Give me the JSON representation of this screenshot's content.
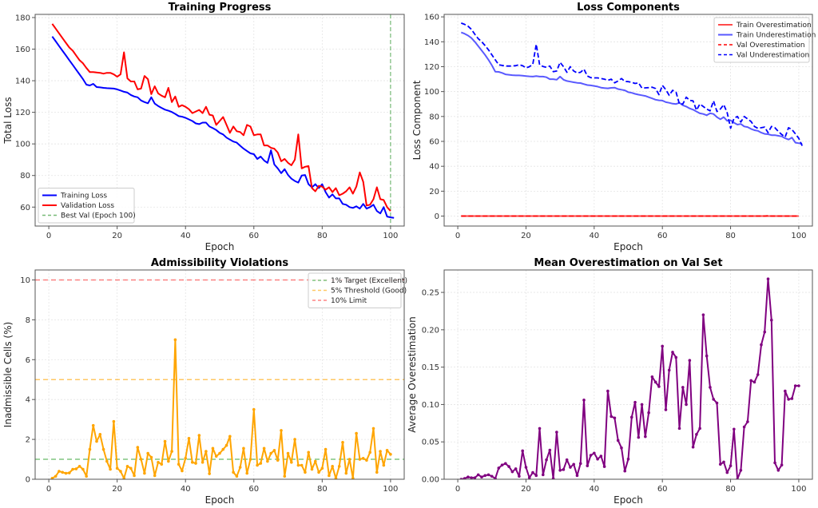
{
  "chart_data": [
    {
      "id": "training",
      "type": "line",
      "title": "Training Progress",
      "xlabel": "Epoch",
      "ylabel": "Total Loss",
      "xlim": [
        -4,
        104
      ],
      "ylim": [
        48,
        182
      ],
      "xticks": [
        0,
        20,
        40,
        60,
        80,
        100
      ],
      "yticks": [
        60,
        80,
        100,
        120,
        140,
        160,
        180
      ],
      "grid": true,
      "legend_position": "lower-left",
      "x_start": 1,
      "series": [
        {
          "name": "Training Loss",
          "color": "#0000ff",
          "style": "solid",
          "values": [
            168,
            165,
            162,
            159,
            156,
            153,
            150,
            147,
            144,
            141,
            137.5,
            137,
            138,
            136,
            135.8,
            135.5,
            135.3,
            135.2,
            135,
            134.5,
            133.8,
            133,
            132.5,
            131,
            130,
            129.5,
            127.5,
            126.5,
            125.7,
            129.5,
            125.5,
            124,
            122.8,
            121.7,
            121,
            120.2,
            119,
            117.6,
            117.2,
            116.5,
            115.5,
            114.5,
            113,
            112.5,
            113.5,
            113.5,
            111,
            110,
            108.8,
            107,
            106,
            104,
            102.7,
            101.5,
            100.8,
            98.8,
            97,
            95.5,
            94,
            93.5,
            90.5,
            92,
            89.5,
            88,
            96,
            87,
            84.5,
            81.5,
            84,
            80.3,
            78,
            76.5,
            75.5,
            80,
            80.3,
            74.5,
            72.5,
            74.5,
            72,
            74.5,
            69.5,
            66,
            68,
            65.5,
            65.5,
            62,
            61.5,
            60,
            59.5,
            60.5,
            59,
            62,
            59,
            60,
            61.5,
            57.5,
            56,
            60,
            54,
            53.5,
            53.2
          ]
        },
        {
          "name": "Validation Loss",
          "color": "#ff0000",
          "style": "solid",
          "values": [
            176,
            173,
            170,
            167,
            164,
            161,
            159,
            156,
            153,
            151,
            148,
            145.5,
            145.5,
            145.2,
            145,
            144.5,
            145,
            145,
            144,
            142.5,
            144,
            158,
            141.5,
            139.5,
            139.5,
            134.5,
            135,
            143,
            141,
            131.5,
            136.5,
            132,
            130.5,
            129.5,
            135.5,
            126.5,
            130,
            123.5,
            124.5,
            123.5,
            122,
            119.5,
            120.5,
            121.5,
            119.5,
            123.5,
            118.5,
            118,
            112,
            114.5,
            117,
            112,
            107,
            111,
            108,
            107.5,
            105.5,
            112,
            111,
            105.5,
            106,
            106,
            99,
            99,
            97.5,
            97,
            94.5,
            89,
            90.5,
            88,
            86.5,
            90,
            106,
            84.5,
            85.5,
            86,
            72,
            70,
            73.5,
            73,
            71,
            72.5,
            69.5,
            72,
            67.5,
            68.5,
            70,
            72.5,
            68.5,
            73,
            82,
            76,
            61,
            61.5,
            65,
            72.5,
            65,
            64.5,
            60,
            57.5
          ]
        }
      ],
      "vlines": [
        {
          "x": 100,
          "name": "Best Val (Epoch 100)",
          "color": "#55aa55",
          "style": "dashed"
        }
      ]
    },
    {
      "id": "components",
      "type": "line",
      "title": "Loss Components",
      "xlabel": "Epoch",
      "ylabel": "Loss Component",
      "xlim": [
        -4,
        104
      ],
      "ylim": [
        -8,
        162
      ],
      "xticks": [
        0,
        20,
        40,
        60,
        80,
        100
      ],
      "yticks": [
        0,
        20,
        40,
        60,
        80,
        100,
        120,
        140,
        160
      ],
      "grid": true,
      "legend_position": "upper-right",
      "x_start": 1,
      "series": [
        {
          "name": "Train Overestimation",
          "color": "#ff0000",
          "style": "solid",
          "opacity": 0.7,
          "values": [
            0,
            0,
            0,
            0,
            0,
            0,
            0,
            0,
            0,
            0,
            0,
            0,
            0,
            0,
            0,
            0,
            0,
            0,
            0,
            0,
            0,
            0,
            0,
            0,
            0,
            0,
            0,
            0,
            0,
            0,
            0,
            0,
            0,
            0,
            0,
            0,
            0,
            0,
            0,
            0,
            0,
            0,
            0,
            0,
            0,
            0,
            0,
            0,
            0,
            0,
            0,
            0,
            0,
            0,
            0,
            0,
            0,
            0,
            0,
            0,
            0,
            0,
            0,
            0,
            0,
            0,
            0,
            0,
            0,
            0,
            0,
            0,
            0,
            0,
            0,
            0,
            0,
            0,
            0,
            0,
            0,
            0,
            0,
            0,
            0,
            0,
            0,
            0,
            0,
            0,
            0,
            0,
            0,
            0,
            0,
            0,
            0,
            0,
            0,
            0
          ]
        },
        {
          "name": "Train Underestimation",
          "color": "#0000ff",
          "style": "solid",
          "opacity": 0.65,
          "values": [
            147.5,
            146.5,
            145,
            143,
            140,
            136.5,
            133,
            129.5,
            125.5,
            121,
            116,
            115.8,
            115,
            113.8,
            113.5,
            113.2,
            113,
            113,
            112.8,
            112.5,
            112.2,
            112,
            112.4,
            112,
            112,
            111.5,
            110,
            110,
            109.5,
            112,
            109.5,
            108.5,
            108,
            107.5,
            107,
            106.8,
            106,
            105.2,
            105,
            104.5,
            104,
            103.2,
            102.8,
            102.6,
            103,
            103.2,
            102,
            101.5,
            101,
            99.5,
            99,
            98.2,
            97.5,
            97,
            96.5,
            95.5,
            94.5,
            93.5,
            93,
            92.8,
            91.5,
            91,
            90.3,
            90,
            91,
            89,
            88,
            86.5,
            85.5,
            84,
            82.5,
            82,
            81,
            82.5,
            82,
            79.5,
            77.8,
            79.5,
            76.5,
            77,
            75,
            73.5,
            74,
            72,
            71.5,
            70,
            69,
            68.5,
            67,
            66,
            65.8,
            65,
            65,
            64.5,
            64,
            62.5,
            61.5,
            63,
            59,
            58.5,
            58
          ]
        },
        {
          "name": "Val Overestimation",
          "color": "#ff0000",
          "style": "dashed",
          "opacity": 1,
          "values": [
            0,
            0,
            0,
            0,
            0,
            0,
            0,
            0,
            0,
            0,
            0,
            0,
            0,
            0,
            0,
            0,
            0,
            0,
            0,
            0,
            0,
            0,
            0,
            0,
            0,
            0,
            0,
            0,
            0,
            0,
            0,
            0,
            0,
            0,
            0,
            0,
            0,
            0,
            0,
            0,
            0,
            0,
            0,
            0,
            0,
            0,
            0,
            0,
            0,
            0,
            0,
            0,
            0,
            0,
            0,
            0,
            0,
            0,
            0,
            0,
            0,
            0,
            0,
            0,
            0,
            0,
            0,
            0,
            0,
            0,
            0,
            0,
            0,
            0,
            0,
            0,
            0,
            0,
            0,
            0,
            0,
            0,
            0,
            0,
            0,
            0,
            0,
            0,
            0,
            0,
            0.3,
            0,
            0,
            0,
            0,
            0,
            0,
            0,
            0,
            0
          ]
        },
        {
          "name": "Val Underestimation",
          "color": "#0000ff",
          "style": "dashed",
          "opacity": 1,
          "values": [
            155,
            154,
            152.5,
            150,
            146,
            142.5,
            140,
            137,
            133.5,
            129.5,
            125.5,
            121.5,
            121,
            120.5,
            120.5,
            120.5,
            120.8,
            121.5,
            120.8,
            119,
            120,
            122,
            138,
            121.5,
            120.2,
            119.5,
            120.5,
            116,
            116.5,
            123.5,
            120,
            115.5,
            120,
            116.5,
            115,
            115.5,
            118,
            112.5,
            111.2,
            111,
            111,
            110.5,
            110,
            109,
            110,
            107,
            108.5,
            110.5,
            108.2,
            108,
            107.5,
            106.5,
            107,
            102.8,
            103,
            103.2,
            103.5,
            102.5,
            97.5,
            105,
            101.5,
            97,
            101,
            99.5,
            90,
            90,
            95.5,
            93,
            92.5,
            85,
            90,
            88,
            86,
            84.5,
            92.5,
            84,
            86,
            89.5,
            83,
            70.5,
            78.5,
            80,
            75.5,
            80,
            78,
            76,
            72,
            70.5,
            71,
            71.5,
            67,
            72,
            71,
            68,
            65.5,
            63.5,
            71,
            69.5,
            66,
            62.5,
            56.5
          ]
        }
      ]
    },
    {
      "id": "admissibility",
      "type": "line",
      "title": "Admissibility Violations",
      "xlabel": "Epoch",
      "ylabel": "Inadmissible Cells (%)",
      "xlim": [
        -4,
        104
      ],
      "ylim": [
        0,
        10.5
      ],
      "xticks": [
        0,
        20,
        40,
        60,
        80,
        100
      ],
      "yticks": [
        0,
        2,
        4,
        6,
        8,
        10
      ],
      "grid": true,
      "legend_position": "upper-right",
      "x_start": 1,
      "series": [
        {
          "name": "Inadmissible Cells",
          "color": "#ffa500",
          "style": "solid",
          "markers": true,
          "values": [
            0.05,
            0.15,
            0.4,
            0.35,
            0.3,
            0.32,
            0.5,
            0.52,
            0.65,
            0.5,
            0.15,
            1.5,
            2.7,
            1.9,
            2.25,
            1.5,
            0.9,
            0.5,
            2.9,
            0.55,
            0.4,
            0.05,
            0.65,
            0.55,
            0.18,
            1.6,
            1.0,
            0.3,
            1.3,
            1.1,
            0.18,
            0.85,
            0.75,
            1.9,
            0.9,
            1.4,
            7.0,
            0.75,
            0.42,
            1.05,
            2.05,
            0.85,
            0.8,
            2.2,
            0.85,
            1.4,
            0.28,
            1.55,
            1.15,
            1.3,
            1.5,
            1.7,
            2.15,
            0.35,
            0.15,
            0.6,
            1.55,
            0.3,
            1.0,
            3.5,
            0.7,
            0.8,
            1.55,
            0.9,
            1.3,
            1.45,
            0.95,
            2.45,
            0.15,
            1.3,
            0.85,
            2.0,
            0.7,
            0.7,
            0.35,
            1.35,
            0.5,
            0.9,
            0.35,
            0.55,
            1.5,
            0.18,
            0.65,
            0.05,
            0.65,
            1.85,
            0.3,
            1.0,
            0.05,
            2.3,
            1.0,
            1.05,
            0.95,
            1.35,
            2.55,
            0.35,
            1.4,
            0.7,
            1.45,
            1.25
          ]
        }
      ],
      "hlines": [
        {
          "y": 1,
          "name": "1% Target (Excellent)",
          "color": "#2ca02c"
        },
        {
          "y": 5,
          "name": "5% Threshold (Good)",
          "color": "#ffa500"
        },
        {
          "y": 10,
          "name": "10% Limit",
          "color": "#ff3333"
        }
      ]
    },
    {
      "id": "overestimation",
      "type": "line",
      "title": "Mean Overestimation on Val Set",
      "xlabel": "Epoch",
      "ylabel": "Average Overestimation",
      "xlim": [
        -4,
        104
      ],
      "ylim": [
        0,
        0.28
      ],
      "xticks": [
        0,
        20,
        40,
        60,
        80,
        100
      ],
      "yticks": [
        0.0,
        0.05,
        0.1,
        0.15,
        0.2,
        0.25
      ],
      "grid": true,
      "x_start": 1,
      "series": [
        {
          "name": "Average Overestimation",
          "color": "#800080",
          "style": "solid",
          "markers": true,
          "values": [
            0.0,
            0.001,
            0.003,
            0.002,
            0.002,
            0.006,
            0.003,
            0.005,
            0.006,
            0.004,
            0.001,
            0.015,
            0.019,
            0.021,
            0.017,
            0.01,
            0.014,
            0.004,
            0.038,
            0.016,
            0.002,
            0.009,
            0.005,
            0.068,
            0.006,
            0.026,
            0.039,
            0.001,
            0.063,
            0.012,
            0.013,
            0.026,
            0.016,
            0.02,
            0.005,
            0.021,
            0.106,
            0.018,
            0.032,
            0.035,
            0.027,
            0.031,
            0.017,
            0.118,
            0.084,
            0.082,
            0.052,
            0.042,
            0.011,
            0.027,
            0.083,
            0.103,
            0.056,
            0.1,
            0.057,
            0.089,
            0.137,
            0.13,
            0.124,
            0.178,
            0.093,
            0.146,
            0.17,
            0.163,
            0.068,
            0.123,
            0.1,
            0.159,
            0.043,
            0.06,
            0.068,
            0.22,
            0.165,
            0.123,
            0.107,
            0.102,
            0.02,
            0.023,
            0.009,
            0.018,
            0.067,
            0.0,
            0.012,
            0.07,
            0.077,
            0.132,
            0.13,
            0.14,
            0.18,
            0.197,
            0.268,
            0.213,
            0.022,
            0.012,
            0.019,
            0.118,
            0.107,
            0.108,
            0.125,
            0.125
          ]
        }
      ]
    }
  ]
}
